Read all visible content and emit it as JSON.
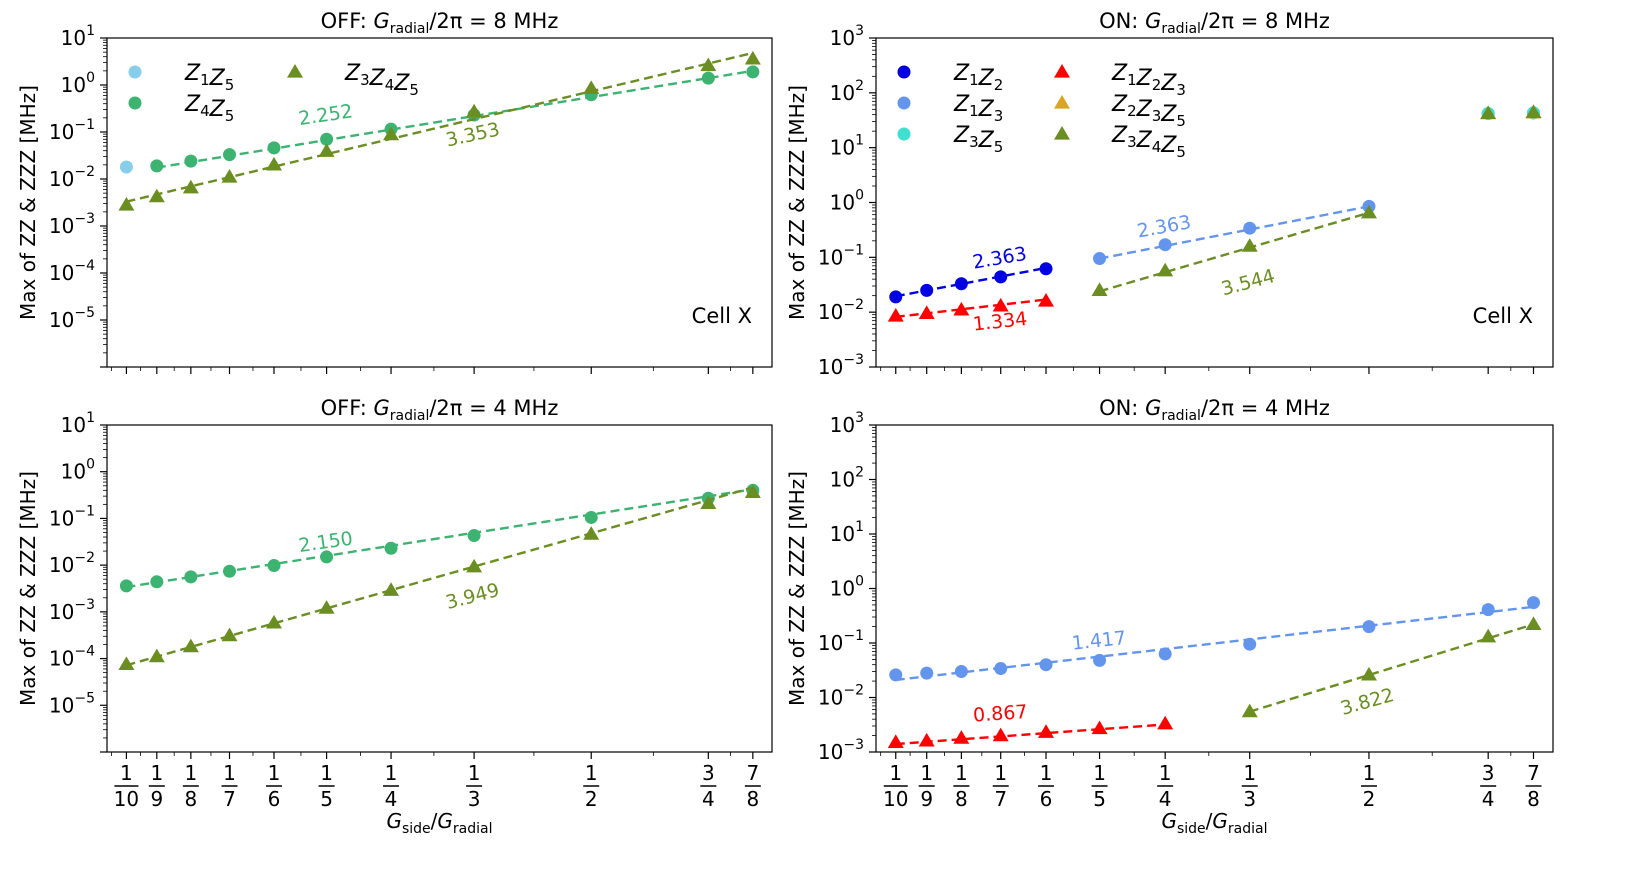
{
  "chart_data": [
    {
      "type": "scatter",
      "title": "OFF: G_radial/2π = 8 MHz",
      "title_parts": {
        "prefix": "OFF: ",
        "symbol": "G",
        "sub": "radial",
        "suffix": "/2π = 8 MHz"
      },
      "ylabel": "Max of ZZ & ZZZ [MHz]",
      "ylog_range": [
        -6,
        1
      ],
      "ytick_exponents": [
        -5,
        -4,
        -3,
        -2,
        -1,
        0,
        1
      ],
      "annotation": "Cell X",
      "show_xticklabels": false,
      "legend": {
        "placement": "top-left",
        "columns": 2
      },
      "series": [
        {
          "name": "Z1Z5",
          "label": [
            [
              "Z",
              "1"
            ],
            [
              "Z",
              "5"
            ]
          ],
          "marker": "circle",
          "color": "#87ceeb",
          "x": [
            0.1
          ],
          "y": [
            0.018
          ],
          "fit": null
        },
        {
          "name": "Z4Z5",
          "label": [
            [
              "Z",
              "4"
            ],
            [
              "Z",
              "5"
            ]
          ],
          "marker": "circle",
          "color": "#3cb371",
          "x": [
            0.1111,
            0.125,
            0.1429,
            0.1667,
            0.2,
            0.25,
            0.3333,
            0.5,
            0.75,
            0.875
          ],
          "y": [
            0.019,
            0.024,
            0.033,
            0.046,
            0.07,
            0.115,
            0.23,
            0.62,
            1.4,
            1.9
          ],
          "fit": {
            "x": [
              0.1111,
              0.875
            ],
            "y": [
              0.0175,
              2.0
            ]
          },
          "slope": "2.252",
          "slope_at": [
            0.2,
            0.17
          ]
        },
        {
          "name": "Z3Z4Z5",
          "label": [
            [
              "Z",
              "3"
            ],
            [
              "Z",
              "4"
            ],
            [
              "Z",
              "5"
            ]
          ],
          "marker": "triangle",
          "color": "#6b8e23",
          "x": [
            0.1,
            0.1111,
            0.125,
            0.1429,
            0.1667,
            0.2,
            0.25,
            0.3333,
            0.5,
            0.75,
            0.875
          ],
          "y": [
            0.0028,
            0.0042,
            0.0065,
            0.011,
            0.02,
            0.039,
            0.088,
            0.27,
            0.85,
            2.6,
            3.6
          ],
          "fit": {
            "x": [
              0.1,
              0.875
            ],
            "y": [
              0.0033,
              4.8
            ]
          },
          "slope": "3.353",
          "slope_at": [
            0.3333,
            0.065
          ]
        }
      ]
    },
    {
      "type": "scatter",
      "title": "ON: G_radial/2π = 8 MHz",
      "title_parts": {
        "prefix": "ON: ",
        "symbol": "G",
        "sub": "radial",
        "suffix": "/2π = 8 MHz"
      },
      "ylabel": "Max of ZZ & ZZZ [MHz]",
      "ylog_range": [
        -3,
        3
      ],
      "ytick_exponents": [
        -3,
        -2,
        -1,
        0,
        1,
        2,
        3
      ],
      "annotation": "Cell X",
      "show_xticklabels": false,
      "legend": {
        "placement": "top-left",
        "columns": 2
      },
      "series": [
        {
          "name": "Z1Z2",
          "label": [
            [
              "Z",
              "1"
            ],
            [
              "Z",
              "2"
            ]
          ],
          "marker": "circle",
          "color": "#0000e0",
          "x": [
            0.1,
            0.1111,
            0.125,
            0.1429,
            0.1667
          ],
          "y": [
            0.019,
            0.025,
            0.033,
            0.044,
            0.062
          ],
          "fit": {
            "x": [
              0.1,
              0.1667
            ],
            "y": [
              0.0195,
              0.064
            ]
          },
          "slope": "2.363",
          "slope_at": [
            0.1429,
            0.075
          ]
        },
        {
          "name": "Z1Z3",
          "label": [
            [
              "Z",
              "1"
            ],
            [
              "Z",
              "3"
            ]
          ],
          "marker": "circle",
          "color": "#6495ed",
          "x": [
            0.2,
            0.25,
            0.3333,
            0.5,
            0.75,
            0.875
          ],
          "y": [
            0.095,
            0.17,
            0.34,
            0.85,
            42,
            43
          ],
          "fit": {
            "x": [
              0.2,
              0.5
            ],
            "y": [
              0.095,
              0.85
            ]
          },
          "slope": "2.363",
          "slope_at": [
            0.25,
            0.28
          ]
        },
        {
          "name": "Z3Z5",
          "label": [
            [
              "Z",
              "3"
            ],
            [
              "Z",
              "5"
            ]
          ],
          "marker": "circle",
          "color": "#40e0d0",
          "x": [
            0.75,
            0.875
          ],
          "y": [
            42,
            43
          ],
          "fit": null
        },
        {
          "name": "Z1Z2Z3",
          "label": [
            [
              "Z",
              "1"
            ],
            [
              "Z",
              "2"
            ],
            [
              "Z",
              "3"
            ]
          ],
          "marker": "triangle",
          "color": "#ff0000",
          "x": [
            0.1,
            0.1111,
            0.125,
            0.1429,
            0.1667
          ],
          "y": [
            0.0085,
            0.0095,
            0.011,
            0.013,
            0.016
          ],
          "fit": {
            "x": [
              0.1,
              0.1667
            ],
            "y": [
              0.0082,
              0.017
            ]
          },
          "slope": "1.334",
          "slope_at": [
            0.1429,
            0.0052
          ]
        },
        {
          "name": "Z2Z3Z5",
          "label": [
            [
              "Z",
              "2"
            ],
            [
              "Z",
              "3"
            ],
            [
              "Z",
              "5"
            ]
          ],
          "marker": "triangle",
          "color": "#daa520",
          "x": [
            0.75,
            0.875
          ],
          "y": [
            42,
            43
          ],
          "fit": null
        },
        {
          "name": "Z3Z4Z5",
          "label": [
            [
              "Z",
              "3"
            ],
            [
              "Z",
              "4"
            ],
            [
              "Z",
              "5"
            ]
          ],
          "marker": "triangle",
          "color": "#6b8e23",
          "x": [
            0.2,
            0.25,
            0.3333,
            0.5,
            0.75,
            0.875
          ],
          "y": [
            0.025,
            0.057,
            0.16,
            0.65,
            42,
            44
          ],
          "fit": {
            "x": [
              0.2,
              0.5
            ],
            "y": [
              0.024,
              0.65
            ]
          },
          "slope": "3.544",
          "slope_at": [
            0.3333,
            0.027
          ]
        }
      ]
    },
    {
      "type": "scatter",
      "title": "OFF: G_radial/2π = 4 MHz",
      "title_parts": {
        "prefix": "OFF: ",
        "symbol": "G",
        "sub": "radial",
        "suffix": "/2π = 4 MHz"
      },
      "ylabel": "Max of ZZ & ZZZ [MHz]",
      "ylog_range": [
        -6,
        1
      ],
      "ytick_exponents": [
        -5,
        -4,
        -3,
        -2,
        -1,
        0,
        1
      ],
      "annotation": "",
      "show_xticklabels": true,
      "legend": null,
      "series": [
        {
          "name": "Z4Z5",
          "marker": "circle",
          "color": "#3cb371",
          "x": [
            0.1,
            0.1111,
            0.125,
            0.1429,
            0.1667,
            0.2,
            0.25,
            0.3333,
            0.5,
            0.75,
            0.875
          ],
          "y": [
            0.0036,
            0.0044,
            0.0056,
            0.0074,
            0.0098,
            0.015,
            0.023,
            0.043,
            0.105,
            0.27,
            0.4
          ],
          "fit": {
            "x": [
              0.1,
              0.875
            ],
            "y": [
              0.0034,
              0.42
            ]
          },
          "slope": "2.150",
          "slope_at": [
            0.2,
            0.023
          ]
        },
        {
          "name": "Z3Z4Z5",
          "marker": "triangle",
          "color": "#6b8e23",
          "x": [
            0.1,
            0.1111,
            0.125,
            0.1429,
            0.1667,
            0.2,
            0.25,
            0.3333,
            0.5,
            0.75,
            0.875
          ],
          "y": [
            7.5e-05,
            0.00011,
            0.00018,
            0.00031,
            0.00058,
            0.0012,
            0.0029,
            0.0092,
            0.046,
            0.21,
            0.36
          ],
          "fit": {
            "x": [
              0.1,
              0.875
            ],
            "y": [
              7.2e-05,
              0.46
            ]
          },
          "slope": "3.949",
          "slope_at": [
            0.3333,
            0.0016
          ]
        }
      ]
    },
    {
      "type": "scatter",
      "title": "ON: G_radial/2π = 4 MHz",
      "title_parts": {
        "prefix": "ON: ",
        "symbol": "G",
        "sub": "radial",
        "suffix": "/2π = 4 MHz"
      },
      "ylabel": "Max of ZZ & ZZZ [MHz]",
      "ylog_range": [
        -3,
        3
      ],
      "ytick_exponents": [
        -3,
        -2,
        -1,
        0,
        1,
        2,
        3
      ],
      "annotation": "",
      "show_xticklabels": true,
      "legend": null,
      "series": [
        {
          "name": "Z1Z3",
          "marker": "circle",
          "color": "#6495ed",
          "x": [
            0.1,
            0.1111,
            0.125,
            0.1429,
            0.1667,
            0.2,
            0.25,
            0.3333,
            0.5,
            0.75,
            0.875
          ],
          "y": [
            0.026,
            0.028,
            0.03,
            0.034,
            0.04,
            0.048,
            0.063,
            0.095,
            0.2,
            0.41,
            0.55
          ],
          "fit": {
            "x": [
              0.1,
              0.875
            ],
            "y": [
              0.021,
              0.46
            ]
          },
          "slope": "1.417",
          "slope_at": [
            0.2,
            0.085
          ]
        },
        {
          "name": "Z1Z2Z3",
          "marker": "triangle",
          "color": "#ff0000",
          "x": [
            0.1,
            0.1111,
            0.125,
            0.1429,
            0.1667,
            0.2,
            0.25
          ],
          "y": [
            0.0015,
            0.0016,
            0.0018,
            0.002,
            0.0023,
            0.0027,
            0.0033
          ],
          "fit": {
            "x": [
              0.1,
              0.25
            ],
            "y": [
              0.0014,
              0.0032
            ]
          },
          "slope": "0.867",
          "slope_at": [
            0.1429,
            0.0039
          ]
        },
        {
          "name": "Z3Z4Z5",
          "marker": "triangle",
          "color": "#6b8e23",
          "x": [
            0.3333,
            0.5,
            0.75,
            0.875
          ],
          "y": [
            0.0055,
            0.026,
            0.13,
            0.22
          ],
          "fit": {
            "x": [
              0.3333,
              0.875
            ],
            "y": [
              0.0055,
              0.22
            ]
          },
          "slope": "3.822",
          "slope_at": [
            0.5,
            0.0065
          ]
        }
      ]
    }
  ],
  "x_axis": {
    "label": "G_side/G_radial",
    "label_parts": {
      "sym1": "G",
      "sub1": "side",
      "sym2": "G",
      "sub2": "radial"
    },
    "scale": "log",
    "range": [
      0.0935,
      0.935
    ],
    "ticks": [
      {
        "x": 0.1,
        "num": "1",
        "den": "10"
      },
      {
        "x": 0.1111,
        "num": "1",
        "den": "9"
      },
      {
        "x": 0.125,
        "num": "1",
        "den": "8"
      },
      {
        "x": 0.1429,
        "num": "1",
        "den": "7"
      },
      {
        "x": 0.1667,
        "num": "1",
        "den": "6"
      },
      {
        "x": 0.2,
        "num": "1",
        "den": "5"
      },
      {
        "x": 0.25,
        "num": "1",
        "den": "4"
      },
      {
        "x": 0.3333,
        "num": "1",
        "den": "3"
      },
      {
        "x": 0.5,
        "num": "1",
        "den": "2"
      },
      {
        "x": 0.75,
        "num": "3",
        "den": "4"
      },
      {
        "x": 0.875,
        "num": "7",
        "den": "8"
      }
    ]
  }
}
